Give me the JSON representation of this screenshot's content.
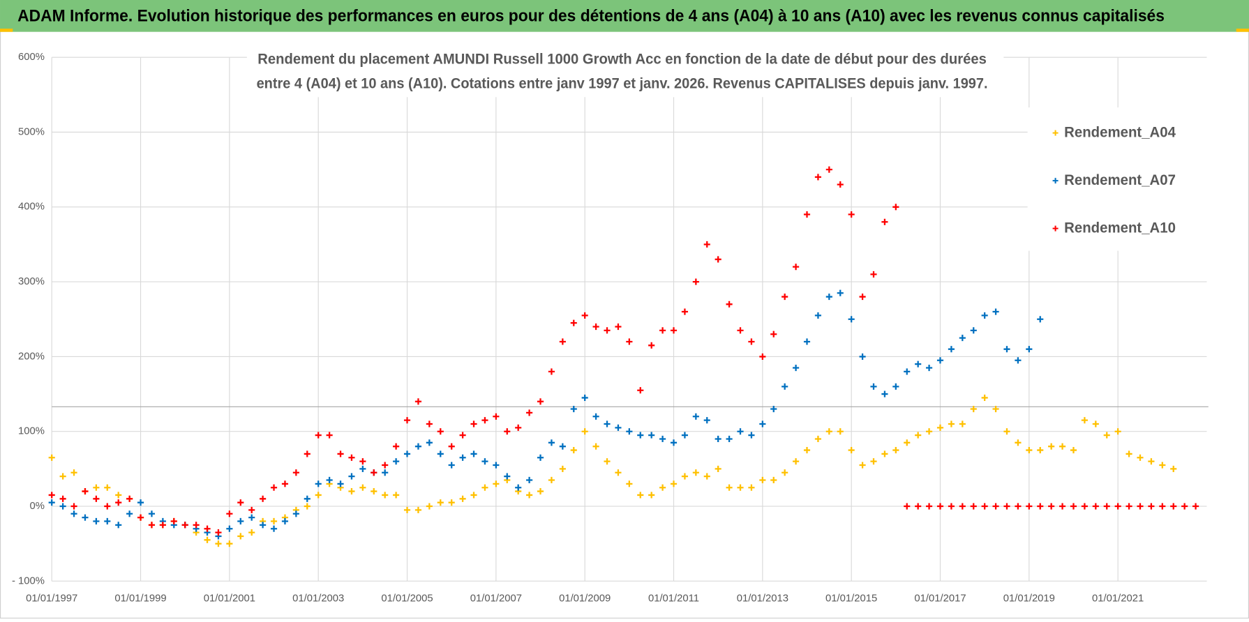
{
  "header": {
    "title": "ADAM Informe. Evolution historique des performances en euros pour des détentions de 4 ans (A04) à 10 ans (A10) avec les revenus connus capitalisés"
  },
  "chart_data": {
    "type": "scatter",
    "title": [
      "Rendement du placement AMUNDI Russell 1000 Growth Acc en fonction de la date de début pour des durées",
      "entre 4 (A04) et 10 ans (A10). Cotations entre janv 1997 et janv. 2026. Revenus CAPITALISES depuis janv. 1997."
    ],
    "x": [
      "1997-01-01",
      "1997-04-01",
      "1997-07-01",
      "1997-10-01",
      "1998-01-01",
      "1998-04-01",
      "1998-07-01",
      "1998-10-01",
      "1999-01-01",
      "1999-04-01",
      "1999-07-01",
      "1999-10-01",
      "2000-01-01",
      "2000-04-01",
      "2000-07-01",
      "2000-10-01",
      "2001-01-01",
      "2001-04-01",
      "2001-07-01",
      "2001-10-01",
      "2002-01-01",
      "2002-04-01",
      "2002-07-01",
      "2002-10-01",
      "2003-01-01",
      "2003-04-01",
      "2003-07-01",
      "2003-10-01",
      "2004-01-01",
      "2004-04-01",
      "2004-07-01",
      "2004-10-01",
      "2005-01-01",
      "2005-04-01",
      "2005-07-01",
      "2005-10-01",
      "2006-01-01",
      "2006-04-01",
      "2006-07-01",
      "2006-10-01",
      "2007-01-01",
      "2007-04-01",
      "2007-07-01",
      "2007-10-01",
      "2008-01-01",
      "2008-04-01",
      "2008-07-01",
      "2008-10-01",
      "2009-01-01",
      "2009-04-01",
      "2009-07-01",
      "2009-10-01",
      "2010-01-01",
      "2010-04-01",
      "2010-07-01",
      "2010-10-01",
      "2011-01-01",
      "2011-04-01",
      "2011-07-01",
      "2011-10-01",
      "2012-01-01",
      "2012-04-01",
      "2012-07-01",
      "2012-10-01",
      "2013-01-01",
      "2013-04-01",
      "2013-07-01",
      "2013-10-01",
      "2014-01-01",
      "2014-04-01",
      "2014-07-01",
      "2014-10-01",
      "2015-01-01",
      "2015-04-01",
      "2015-07-01",
      "2015-10-01",
      "2016-01-01",
      "2016-04-01",
      "2016-07-01",
      "2016-10-01",
      "2017-01-01",
      "2017-04-01",
      "2017-07-01",
      "2017-10-01",
      "2018-01-01",
      "2018-04-01",
      "2018-07-01",
      "2018-10-01",
      "2019-01-01",
      "2019-04-01",
      "2019-07-01",
      "2019-10-01",
      "2020-01-01",
      "2020-04-01",
      "2020-07-01",
      "2020-10-01",
      "2021-01-01",
      "2021-04-01",
      "2021-07-01",
      "2021-10-01",
      "2022-01-01",
      "2022-04-01",
      "2022-07-01",
      "2022-10-01"
    ],
    "series": [
      {
        "name": "Rendement_A04",
        "color": "#ffc000",
        "values": [
          65,
          40,
          45,
          20,
          25,
          25,
          15,
          10,
          -15,
          -25,
          -25,
          -20,
          -25,
          -35,
          -45,
          -50,
          -50,
          -40,
          -35,
          -20,
          -20,
          -15,
          -5,
          0,
          15,
          30,
          25,
          20,
          25,
          20,
          15,
          15,
          -5,
          -5,
          0,
          5,
          5,
          10,
          15,
          25,
          30,
          35,
          20,
          15,
          20,
          35,
          50,
          75,
          100,
          80,
          60,
          45,
          30,
          15,
          15,
          25,
          30,
          40,
          45,
          40,
          50,
          25,
          25,
          25,
          35,
          35,
          45,
          60,
          75,
          90,
          100,
          100,
          75,
          55,
          60,
          70,
          75,
          85,
          95,
          100,
          105,
          110,
          110,
          130,
          145,
          130,
          100,
          85,
          75,
          75,
          80,
          80,
          75,
          115,
          110,
          95,
          100,
          70,
          65,
          60,
          55,
          50,
          null,
          null
        ]
      },
      {
        "name": "Rendement_A07",
        "color": "#0070c0",
        "values": [
          5,
          0,
          -10,
          -15,
          -20,
          -20,
          -25,
          -10,
          5,
          -10,
          -20,
          -25,
          -25,
          -30,
          -35,
          -40,
          -30,
          -20,
          -15,
          -25,
          -30,
          -20,
          -10,
          10,
          30,
          35,
          30,
          40,
          50,
          45,
          45,
          60,
          70,
          80,
          85,
          70,
          55,
          65,
          70,
          60,
          55,
          40,
          25,
          35,
          65,
          85,
          80,
          130,
          145,
          120,
          110,
          105,
          100,
          95,
          95,
          90,
          85,
          95,
          120,
          115,
          90,
          90,
          100,
          95,
          110,
          130,
          160,
          185,
          220,
          255,
          280,
          285,
          250,
          200,
          160,
          150,
          160,
          180,
          190,
          185,
          195,
          210,
          225,
          235,
          255,
          260,
          210,
          195,
          210,
          250,
          null,
          null,
          null,
          null,
          null,
          null,
          null,
          null,
          null,
          null,
          null,
          null,
          null,
          null
        ]
      },
      {
        "name": "Rendement_A10",
        "color": "#ff0000",
        "values": [
          15,
          10,
          0,
          20,
          10,
          0,
          5,
          10,
          -15,
          -25,
          -25,
          -20,
          -25,
          -25,
          -30,
          -35,
          -10,
          5,
          -5,
          10,
          25,
          30,
          45,
          70,
          95,
          95,
          70,
          65,
          60,
          45,
          55,
          80,
          115,
          140,
          110,
          100,
          80,
          95,
          110,
          115,
          120,
          100,
          105,
          125,
          140,
          180,
          220,
          245,
          255,
          240,
          235,
          240,
          220,
          155,
          215,
          235,
          235,
          260,
          300,
          350,
          330,
          270,
          235,
          220,
          200,
          230,
          280,
          320,
          390,
          440,
          450,
          430,
          390,
          280,
          310,
          380,
          400,
          0,
          0,
          0,
          0,
          0,
          0,
          0,
          0,
          0,
          0,
          0,
          0,
          0,
          0,
          0,
          0,
          0,
          0,
          0,
          0,
          0,
          0,
          0,
          0,
          0,
          0,
          0
        ]
      }
    ],
    "xlim": [
      "1997-01-01",
      "2023-01-01"
    ],
    "xticks": [
      {
        "value": "1997-01-01",
        "label": "01/01/1997"
      },
      {
        "value": "1999-01-01",
        "label": "01/01/1999"
      },
      {
        "value": "2001-01-01",
        "label": "01/01/2001"
      },
      {
        "value": "2003-01-01",
        "label": "01/01/2003"
      },
      {
        "value": "2005-01-01",
        "label": "01/01/2005"
      },
      {
        "value": "2007-01-01",
        "label": "01/01/2007"
      },
      {
        "value": "2009-01-01",
        "label": "01/01/2009"
      },
      {
        "value": "2011-01-01",
        "label": "01/01/2011"
      },
      {
        "value": "2013-01-01",
        "label": "01/01/2013"
      },
      {
        "value": "2015-01-01",
        "label": "01/01/2015"
      },
      {
        "value": "2017-01-01",
        "label": "01/01/2017"
      },
      {
        "value": "2019-01-01",
        "label": "01/01/2019"
      },
      {
        "value": "2021-01-01",
        "label": "01/01/2021"
      }
    ],
    "ylim": [
      -100,
      600
    ],
    "yticks": [
      {
        "value": -100,
        "label": "- 100%"
      },
      {
        "value": 0,
        "label": "0%"
      },
      {
        "value": 100,
        "label": "100%"
      },
      {
        "value": 200,
        "label": "200%"
      },
      {
        "value": 300,
        "label": "300%"
      },
      {
        "value": 400,
        "label": "400%"
      },
      {
        "value": 500,
        "label": "500%"
      },
      {
        "value": 600,
        "label": "600%"
      }
    ],
    "hline": 133,
    "grid": true,
    "legend": "upper right"
  }
}
